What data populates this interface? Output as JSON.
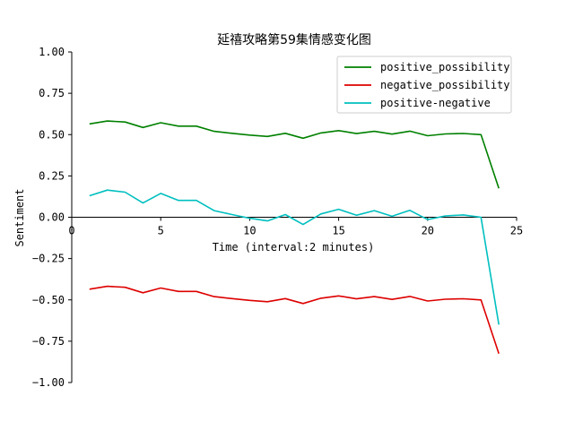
{
  "chart_data": {
    "type": "line",
    "title": "延禧攻略第59集情感变化图",
    "xlabel": "Time (interval:2 minutes)",
    "ylabel": "Sentiment",
    "xlim": [
      0,
      25
    ],
    "ylim": [
      -1.0,
      1.0
    ],
    "xticks": [
      0,
      5,
      10,
      15,
      20,
      25
    ],
    "yticks": [
      1.0,
      0.75,
      0.5,
      0.25,
      0.0,
      -0.25,
      -0.5,
      -0.75,
      -1.0
    ],
    "xtick_labels": [
      "0",
      "5",
      "10",
      "15",
      "20",
      "25"
    ],
    "ytick_labels": [
      "1.00",
      "0.75",
      "0.50",
      "0.25",
      "0.00",
      "−0.25",
      "−0.50",
      "−0.75",
      "−1.00"
    ],
    "grid": false,
    "legend_position": "top-right",
    "x": [
      1,
      2,
      3,
      4,
      5,
      6,
      7,
      8,
      9,
      10,
      11,
      12,
      13,
      14,
      15,
      16,
      17,
      18,
      19,
      20,
      21,
      22,
      23,
      24
    ],
    "series": [
      {
        "name": "positive_possibility",
        "color": "#008000",
        "values": [
          0.565,
          0.582,
          0.576,
          0.543,
          0.572,
          0.551,
          0.551,
          0.52,
          0.508,
          0.497,
          0.489,
          0.508,
          0.478,
          0.51,
          0.524,
          0.506,
          0.52,
          0.503,
          0.521,
          0.493,
          0.504,
          0.507,
          0.5,
          0.175
        ]
      },
      {
        "name": "negative_possibility",
        "color": "#dd0000",
        "values": [
          -0.435,
          -0.418,
          -0.424,
          -0.457,
          -0.428,
          -0.449,
          -0.449,
          -0.48,
          -0.492,
          -0.503,
          -0.511,
          -0.492,
          -0.522,
          -0.49,
          -0.476,
          -0.494,
          -0.48,
          -0.497,
          -0.479,
          -0.507,
          -0.496,
          -0.493,
          -0.5,
          -0.825
        ]
      },
      {
        "name": "positive-negative",
        "color": "#00bfbf",
        "values": [
          0.13,
          0.164,
          0.152,
          0.086,
          0.144,
          0.102,
          0.102,
          0.04,
          0.016,
          -0.006,
          -0.022,
          0.016,
          -0.044,
          0.02,
          0.048,
          0.012,
          0.04,
          0.006,
          0.042,
          -0.014,
          0.008,
          0.014,
          0.0,
          -0.65
        ]
      }
    ]
  }
}
